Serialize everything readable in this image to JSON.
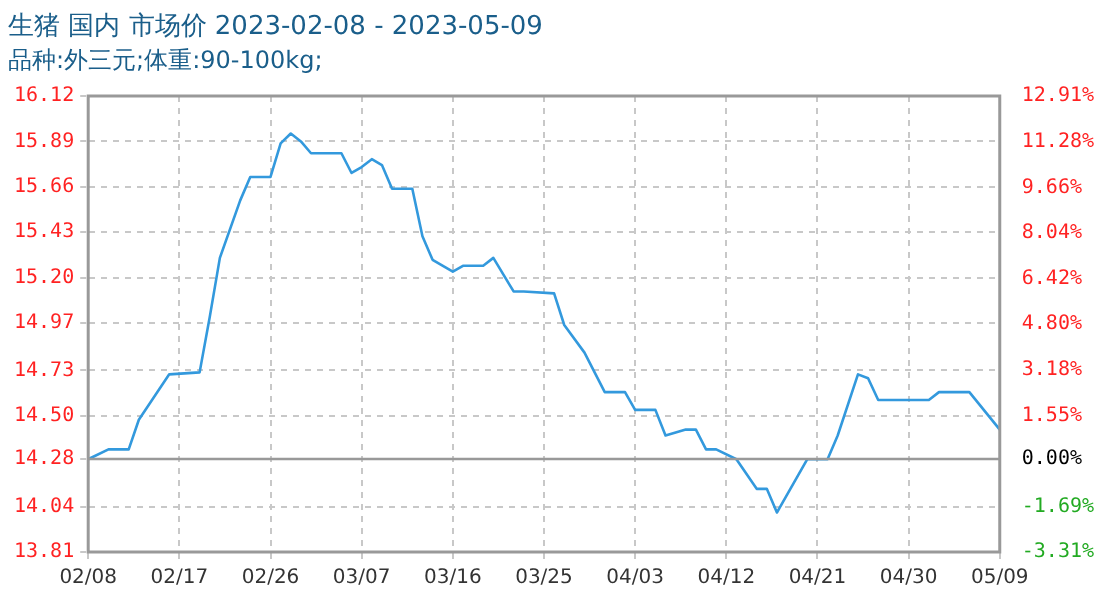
{
  "chart_data": {
    "type": "line",
    "title": "生猪 国内 市场价 2023-02-08 - 2023-05-09",
    "subtitle": "品种:外三元;体重:90-100kg;",
    "x": [
      "2023-02-08",
      "2023-02-10",
      "2023-02-12",
      "2023-02-13",
      "2023-02-16",
      "2023-02-19",
      "2023-02-20",
      "2023-02-21",
      "2023-02-23",
      "2023-02-24",
      "2023-02-26",
      "2023-02-27",
      "2023-02-28",
      "2023-03-01",
      "2023-03-02",
      "2023-03-05",
      "2023-03-06",
      "2023-03-07",
      "2023-03-08",
      "2023-03-09",
      "2023-03-10",
      "2023-03-12",
      "2023-03-13",
      "2023-03-14",
      "2023-03-16",
      "2023-03-17",
      "2023-03-19",
      "2023-03-20",
      "2023-03-22",
      "2023-03-23",
      "2023-03-26",
      "2023-03-27",
      "2023-03-29",
      "2023-03-31",
      "2023-04-02",
      "2023-04-03",
      "2023-04-05",
      "2023-04-06",
      "2023-04-08",
      "2023-04-09",
      "2023-04-10",
      "2023-04-11",
      "2023-04-13",
      "2023-04-15",
      "2023-04-16",
      "2023-04-17",
      "2023-04-20",
      "2023-04-22",
      "2023-04-23",
      "2023-04-25",
      "2023-04-26",
      "2023-04-27",
      "2023-05-02",
      "2023-05-03",
      "2023-05-06",
      "2023-05-09"
    ],
    "series": [
      {
        "color": "#3399dd",
        "values": [
          14.28,
          14.33,
          14.33,
          14.48,
          14.71,
          14.72,
          15.0,
          15.3,
          15.59,
          15.71,
          15.71,
          15.88,
          15.93,
          15.89,
          15.83,
          15.83,
          15.73,
          15.76,
          15.8,
          15.77,
          15.65,
          15.65,
          15.41,
          15.29,
          15.23,
          15.26,
          15.26,
          15.3,
          15.13,
          15.13,
          15.12,
          14.96,
          14.82,
          14.62,
          14.62,
          14.53,
          14.53,
          14.4,
          14.43,
          14.43,
          14.33,
          14.33,
          14.28,
          14.13,
          14.13,
          14.01,
          14.28,
          14.28,
          14.4,
          14.71,
          14.69,
          14.58,
          14.58,
          14.62,
          14.62,
          14.43
        ]
      }
    ],
    "xlim": [
      "2023-02-08",
      "2023-05-09"
    ],
    "xticks": [
      {
        "value": "2023-02-08",
        "label": "02/08"
      },
      {
        "value": "2023-02-17",
        "label": "02/17"
      },
      {
        "value": "2023-02-26",
        "label": "02/26"
      },
      {
        "value": "2023-03-07",
        "label": "03/07"
      },
      {
        "value": "2023-03-16",
        "label": "03/16"
      },
      {
        "value": "2023-03-25",
        "label": "03/25"
      },
      {
        "value": "2023-04-03",
        "label": "04/03"
      },
      {
        "value": "2023-04-12",
        "label": "04/12"
      },
      {
        "value": "2023-04-21",
        "label": "04/21"
      },
      {
        "value": "2023-04-30",
        "label": "04/30"
      },
      {
        "value": "2023-05-09",
        "label": "05/09"
      }
    ],
    "ylim": [
      13.81,
      16.12
    ],
    "yticks": [
      13.81,
      14.04,
      14.28,
      {
        "value": 14.5,
        "label": "14.50"
      },
      14.73,
      14.97,
      {
        "value": 15.2,
        "label": "15.20"
      },
      15.43,
      15.66,
      15.89,
      16.12
    ],
    "y2lim": [
      -3.31,
      12.91
    ],
    "y2ticks": [
      {
        "value": -3.31,
        "label": "-3.31%"
      },
      {
        "value": -1.69,
        "label": "-1.69%"
      },
      {
        "value": 0,
        "label": "0.00%"
      },
      {
        "value": 1.55,
        "label": "1.55%"
      },
      {
        "value": 3.18,
        "label": "3.18%"
      },
      {
        "value": 4.8,
        "label": "4.80%"
      },
      {
        "value": 6.42,
        "label": "6.42%"
      },
      {
        "value": 8.04,
        "label": "8.04%"
      },
      {
        "value": 9.66,
        "label": "9.66%"
      },
      {
        "value": 11.28,
        "label": "11.28%"
      },
      {
        "value": 12.91,
        "label": "12.91%"
      }
    ],
    "grid": true,
    "legend": false,
    "marker": "none",
    "line_style": "solid"
  }
}
